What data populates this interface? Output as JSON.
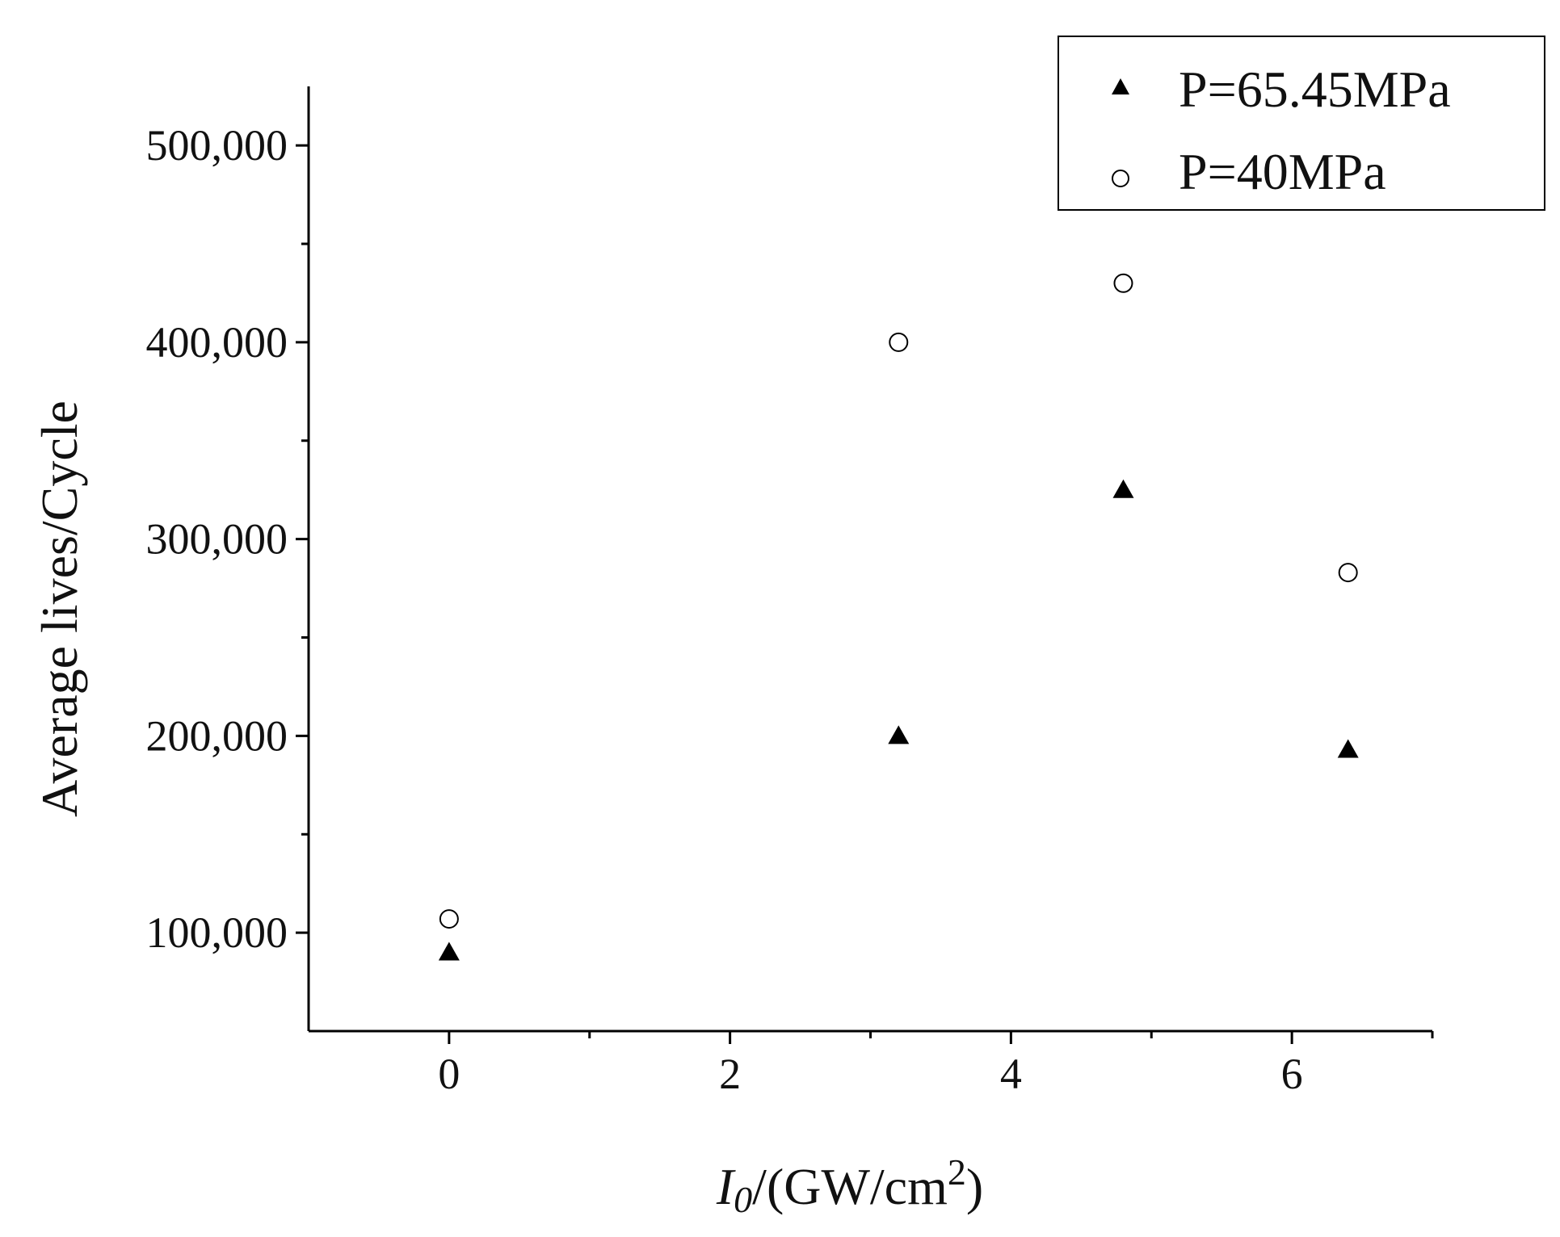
{
  "chart_data": {
    "type": "scatter",
    "title": "",
    "xlabel": {
      "var": "I",
      "sub": "0",
      "unit_prefix": "/(GW/cm",
      "sup": "2",
      "unit_suffix": ")"
    },
    "ylabel": "Average lives/Cycle",
    "xlim": [
      -1,
      7
    ],
    "ylim": [
      50000,
      530000
    ],
    "x_major_ticks": [
      0,
      2,
      4,
      6
    ],
    "x_minor_ticks": [
      1,
      3,
      5,
      7
    ],
    "x_tick_labels": [
      "0",
      "2",
      "4",
      "6"
    ],
    "y_major_ticks": [
      100000,
      200000,
      300000,
      400000,
      500000
    ],
    "y_minor_ticks": [
      150000,
      250000,
      350000,
      450000
    ],
    "y_tick_labels": [
      "100,000",
      "200,000",
      "300,000",
      "400,000",
      "500,000"
    ],
    "grid": false,
    "legend_position": "top-right",
    "series": [
      {
        "name": "P=65.45MPa",
        "marker": "filled-triangle",
        "color": "#000000",
        "points": [
          {
            "x": 0,
            "y": 90000
          },
          {
            "x": 3.2,
            "y": 200000
          },
          {
            "x": 4.8,
            "y": 325000
          },
          {
            "x": 6.4,
            "y": 193000
          }
        ]
      },
      {
        "name": "P=40MPa",
        "marker": "open-circle",
        "color": "#000000",
        "points": [
          {
            "x": 0,
            "y": 107000
          },
          {
            "x": 3.2,
            "y": 400000
          },
          {
            "x": 4.8,
            "y": 430000
          },
          {
            "x": 6.4,
            "y": 283000
          }
        ]
      }
    ]
  }
}
